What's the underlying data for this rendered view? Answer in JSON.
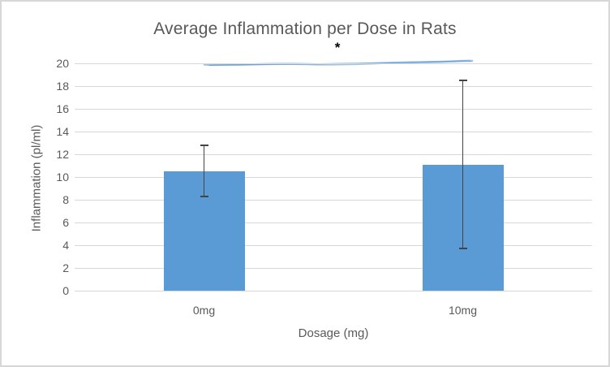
{
  "chart_data": {
    "type": "bar",
    "title": "Average Inflammation per Dose in Rats",
    "xlabel": "Dosage (mg)",
    "ylabel": "Inflammation (pl/ml)",
    "categories": [
      "0mg",
      "10mg"
    ],
    "values": [
      10.5,
      11.1
    ],
    "error_bars": [
      {
        "low": 8.3,
        "high": 12.8
      },
      {
        "low": 3.7,
        "high": 18.5
      }
    ],
    "ylim": [
      0,
      20
    ],
    "ytick_step": 2,
    "yticks": [
      "0",
      "2",
      "4",
      "6",
      "8",
      "10",
      "12",
      "14",
      "16",
      "18",
      "20"
    ],
    "grid": "horizontal",
    "legend": "none",
    "annotations": [
      {
        "type": "significance-line",
        "label": "*",
        "from_category": "0mg",
        "to_category": "10mg",
        "y_level": 20
      }
    ],
    "colors": {
      "bar": "#5B9BD5",
      "gridline": "#D9D9D9",
      "text": "#595959",
      "error_bar": "#444444",
      "significance_line_light": "#9DC3E6",
      "significance_line_dark": "#6FA3D8",
      "asterisk": "#000000",
      "border": "#D7D7D7",
      "background": "#FFFFFF"
    }
  }
}
